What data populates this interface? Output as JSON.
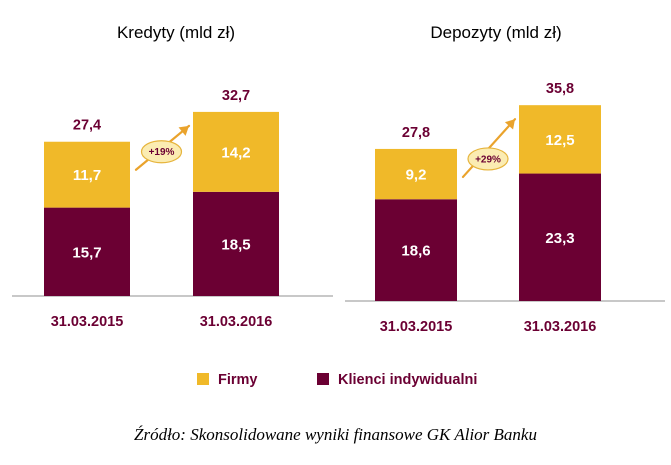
{
  "colors": {
    "firmy": "#f0b929",
    "klienci": "#6b0033",
    "label_dark": "#6b0033",
    "axis": "#b5b5b5",
    "bubble_fill": "#fbecb2",
    "bubble_stroke": "#e6b43c",
    "arrow": "#eaa32c"
  },
  "chart_data": [
    {
      "type": "bar",
      "stacked": true,
      "title": "Kredyty (mld zł)",
      "categories": [
        "31.03.2015",
        "31.03.2016"
      ],
      "series": [
        {
          "name": "Klienci indywidualni",
          "values": [
            15.7,
            18.5
          ],
          "labels": [
            "15,7",
            "18,5"
          ]
        },
        {
          "name": "Firmy",
          "values": [
            11.7,
            14.2
          ],
          "labels": [
            "11,7",
            "14,2"
          ]
        }
      ],
      "totals": [
        27.4,
        32.7
      ],
      "total_labels": [
        "27,4",
        "32,7"
      ],
      "growth_label": "+19%"
    },
    {
      "type": "bar",
      "stacked": true,
      "title": "Depozyty (mld zł)",
      "categories": [
        "31.03.2015",
        "31.03.2016"
      ],
      "series": [
        {
          "name": "Klienci indywidualni",
          "values": [
            18.6,
            23.3
          ],
          "labels": [
            "18,6",
            "23,3"
          ]
        },
        {
          "name": "Firmy",
          "values": [
            9.2,
            12.5
          ],
          "labels": [
            "9,2",
            "12,5"
          ]
        }
      ],
      "totals": [
        27.8,
        35.8
      ],
      "total_labels": [
        "27,8",
        "35,8"
      ],
      "growth_label": "+29%"
    }
  ],
  "legend": {
    "placement": "bottom-center",
    "items": [
      {
        "label": "Firmy",
        "color": "#f0b929"
      },
      {
        "label": "Klienci indywidualni",
        "color": "#6b0033"
      }
    ]
  },
  "source": "Źródło: Skonsolidowane wyniki finansowe GK Alior Banku"
}
